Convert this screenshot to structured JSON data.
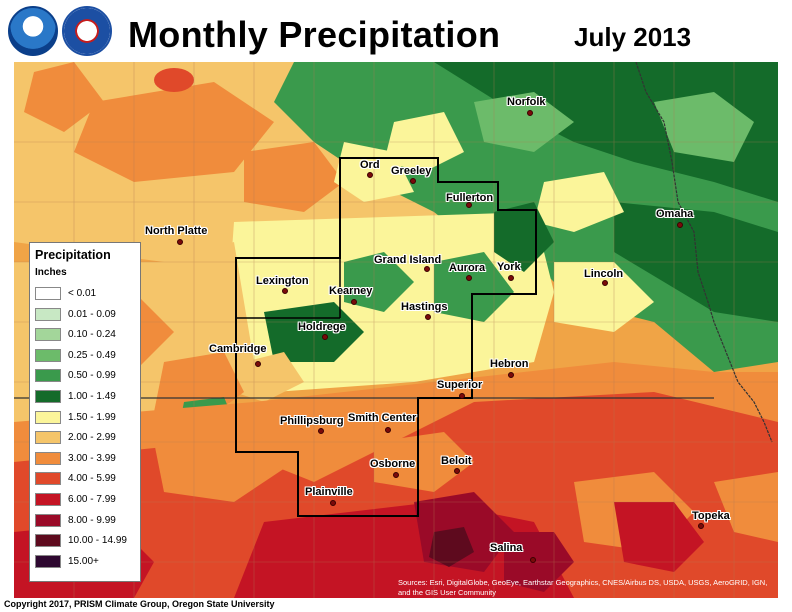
{
  "header": {
    "title": "Monthly Precipitation",
    "date": "July 2013"
  },
  "legend": {
    "title": "Precipitation",
    "units": "Inches",
    "items": [
      {
        "label": "< 0.01",
        "color": "#ffffff"
      },
      {
        "label": "0.01 - 0.09",
        "color": "#c8e8c4"
      },
      {
        "label": "0.10 - 0.24",
        "color": "#a3d69a"
      },
      {
        "label": "0.25 - 0.49",
        "color": "#6cbb6a"
      },
      {
        "label": "0.50 - 0.99",
        "color": "#3a9a4c"
      },
      {
        "label": "1.00 - 1.49",
        "color": "#146b2a"
      },
      {
        "label": "1.50 - 1.99",
        "color": "#fbf59a"
      },
      {
        "label": "2.00 - 2.99",
        "color": "#f5c56a"
      },
      {
        "label": "3.00 - 3.99",
        "color": "#f08c3c"
      },
      {
        "label": "4.00 - 5.99",
        "color": "#e0492a"
      },
      {
        "label": "6.00 - 7.99",
        "color": "#c41424"
      },
      {
        "label": "8.00 - 9.99",
        "color": "#9a0a28"
      },
      {
        "label": "10.00 - 14.99",
        "color": "#5e0a1e"
      },
      {
        "label": "15.00+",
        "color": "#2e0830"
      }
    ]
  },
  "cities": [
    {
      "id": "norfolk",
      "name": "Norfolk"
    },
    {
      "id": "ord",
      "name": "Ord"
    },
    {
      "id": "greeley",
      "name": "Greeley"
    },
    {
      "id": "fullerton",
      "name": "Fullerton"
    },
    {
      "id": "omaha",
      "name": "Omaha"
    },
    {
      "id": "north-platte",
      "name": "North Platte"
    },
    {
      "id": "grand-island",
      "name": "Grand Island"
    },
    {
      "id": "aurora",
      "name": "Aurora"
    },
    {
      "id": "york",
      "name": "York"
    },
    {
      "id": "lincoln",
      "name": "Lincoln"
    },
    {
      "id": "lexington",
      "name": "Lexington"
    },
    {
      "id": "kearney",
      "name": "Kearney"
    },
    {
      "id": "hastings",
      "name": "Hastings"
    },
    {
      "id": "holdrege",
      "name": "Holdrege"
    },
    {
      "id": "cambridge",
      "name": "Cambridge"
    },
    {
      "id": "hebron",
      "name": "Hebron"
    },
    {
      "id": "superior",
      "name": "Superior"
    },
    {
      "id": "phillipsburg",
      "name": "Phillipsburg"
    },
    {
      "id": "smith-center",
      "name": "Smith Center"
    },
    {
      "id": "beloit",
      "name": "Beloit"
    },
    {
      "id": "osborne",
      "name": "Osborne"
    },
    {
      "id": "plainville",
      "name": "Plainville"
    },
    {
      "id": "topeka",
      "name": "Topeka"
    },
    {
      "id": "salina",
      "name": "Salina"
    }
  ],
  "footer": {
    "copyright": "Copyright 2017, PRISM Climate Group, Oregon State University",
    "sources": "Sources: Esri, DigitalGlobe, GeoEye, Earthstar Geographics, CNES/Airbus DS, USDA, USGS, AeroGRID, IGN, and the GIS User Community"
  }
}
